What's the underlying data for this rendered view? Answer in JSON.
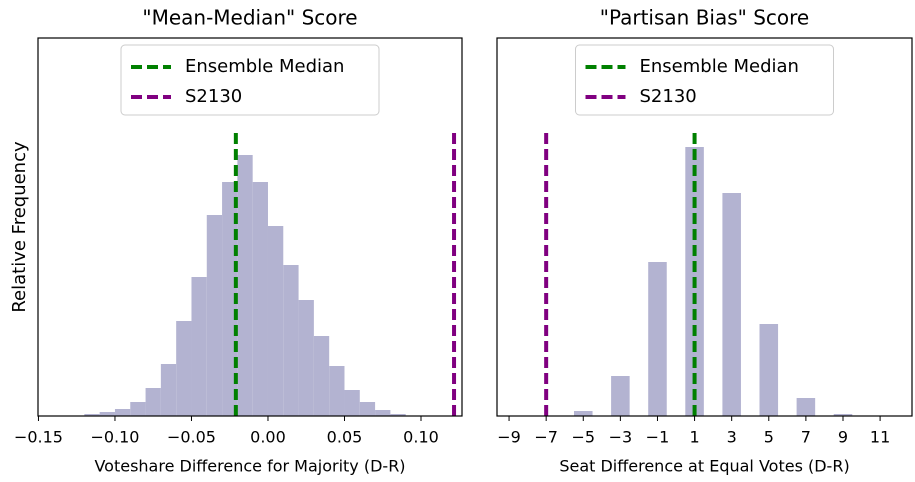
{
  "chart_data": [
    {
      "type": "histogram",
      "title": "\"Mean-Median\" Score",
      "xlabel": "Voteshare Difference for Majority (D-R)",
      "ylabel": "Relative Frequency",
      "bins": [
        -0.12,
        -0.11,
        -0.1,
        -0.09,
        -0.08,
        -0.07,
        -0.06,
        -0.05,
        -0.04,
        -0.03,
        -0.02,
        -0.01,
        0.0,
        0.01,
        0.02,
        0.03,
        0.04,
        0.05,
        0.06,
        0.07,
        0.08,
        0.09
      ],
      "values": [
        2,
        4,
        7,
        14,
        28,
        52,
        95,
        139,
        201,
        234,
        261,
        234,
        190,
        151,
        116,
        80,
        50,
        26,
        14,
        6,
        2
      ],
      "color": "#b3b3d1",
      "xlim": [
        -0.1503,
        0.1268
      ],
      "ylim": [
        0,
        378
      ],
      "xticks": [
        {
          "value": -0.15,
          "label": "−0.15"
        },
        {
          "value": -0.1,
          "label": "−0.10"
        },
        {
          "value": -0.05,
          "label": "−0.05"
        },
        {
          "value": 0,
          "label": "0.00"
        },
        {
          "value": 0.05,
          "label": "0.05"
        },
        {
          "value": 0.1,
          "label": "0.10"
        }
      ],
      "lines": [
        {
          "name": "Ensemble Median",
          "color": "green",
          "x": -0.021
        },
        {
          "name": "S2130",
          "color": "purple",
          "x": 0.1216
        }
      ]
    },
    {
      "type": "histogram",
      "title": "\"Partisan Bias\" Score",
      "xlabel": "Seat Difference at Equal Votes (D-R)",
      "bins": [
        -5.5,
        -4.5,
        -3.5,
        -2.5,
        -1.5,
        -0.5,
        0.5,
        1.5,
        2.5,
        3.5,
        4.5,
        5.5,
        6.5,
        7.5,
        8.5,
        9.5
      ],
      "values": [
        5,
        0,
        40,
        0,
        154,
        0,
        269,
        0,
        223,
        0,
        92,
        0,
        18,
        0,
        2
      ],
      "color": "#b3b3d1",
      "xlim": [
        -9.65,
        12.72
      ],
      "ylim": [
        0,
        378
      ],
      "xticks": [
        {
          "value": -9,
          "label": "−9"
        },
        {
          "value": -7,
          "label": "−7"
        },
        {
          "value": -5,
          "label": "−5"
        },
        {
          "value": -3,
          "label": "−3"
        },
        {
          "value": -1,
          "label": "−1"
        },
        1,
        3,
        5,
        7,
        9,
        11
      ],
      "lines": [
        {
          "name": "Ensemble Median",
          "color": "green",
          "x": 1
        },
        {
          "name": "S2130",
          "color": "purple",
          "x": -7
        }
      ]
    }
  ]
}
